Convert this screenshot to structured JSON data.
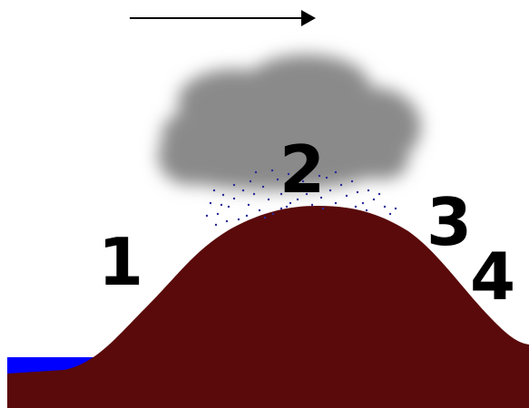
{
  "diagram": {
    "labels": [
      "1",
      "2",
      "3",
      "4"
    ],
    "colors": {
      "mountain": "#5a0a0a",
      "water": "#0000ff",
      "cloud": "#8a8a8a",
      "rain": "#2a2a9a",
      "arrow": "#000000",
      "background": "#ffffff"
    },
    "icons": {
      "arrow": "arrow-right-icon",
      "cloud": "cloud-icon",
      "rain": "rain-dots-icon"
    }
  }
}
